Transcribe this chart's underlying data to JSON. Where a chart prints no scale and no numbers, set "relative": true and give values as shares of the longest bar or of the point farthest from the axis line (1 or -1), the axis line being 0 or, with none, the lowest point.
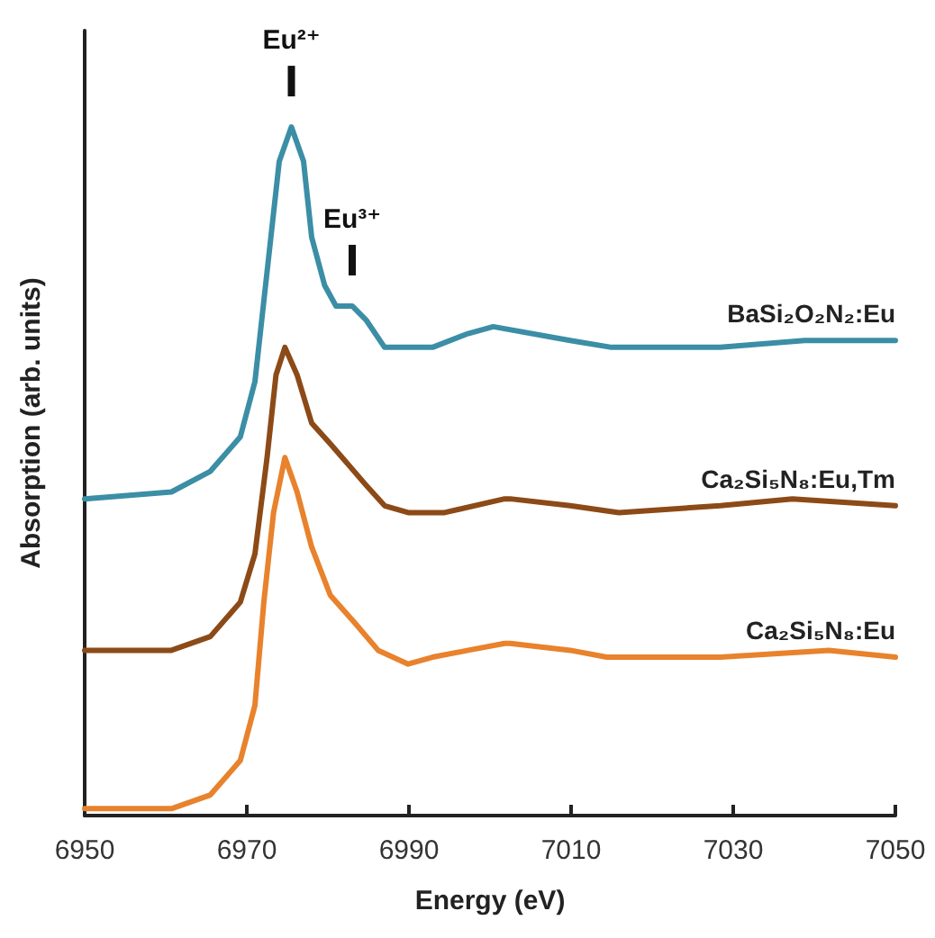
{
  "chart_data": {
    "type": "line",
    "xlabel": "Energy (eV)",
    "ylabel": "Absorption (arb. units)",
    "relative": true,
    "xlim": [
      6950,
      7050
    ],
    "xticks": [
      6950,
      6970,
      6990,
      7010,
      7030,
      7050
    ],
    "grid": false,
    "legend": false,
    "marker": "none",
    "line_style": "solid",
    "annotations": [
      {
        "text": "Eu²⁺",
        "x": 6975.5,
        "y": 1
      },
      {
        "text": "Eu³⁺",
        "x": 6983,
        "y": 0.74
      }
    ],
    "series": [
      {
        "name": "BaSi₂O₂N₂:Eu",
        "color": "#3b8ea5",
        "x": [
          6950,
          6960.7,
          6965.5,
          6969.2,
          6971,
          6972.5,
          6974,
          6975.5,
          6977,
          6978,
          6979.6,
          6981,
          6983,
          6984.7,
          6987,
          6988.8,
          6992.9,
          6997.3,
          7000.4,
          7009.9,
          7015,
          7028.4,
          7038.8,
          7050
        ],
        "values": [
          0.46,
          0.47,
          0.5,
          0.55,
          0.63,
          0.79,
          0.95,
          1,
          0.95,
          0.84,
          0.77,
          0.74,
          0.74,
          0.72,
          0.68,
          0.68,
          0.68,
          0.7,
          0.71,
          0.69,
          0.68,
          0.68,
          0.69,
          0.69
        ]
      },
      {
        "name": "Ca₂Si₅N₈:Eu,Tm",
        "color": "#8c4a17",
        "x": [
          6950,
          6960.7,
          6965.5,
          6969.2,
          6971,
          6972.5,
          6973.6,
          6974.7,
          6976.2,
          6978,
          6980.3,
          6982.5,
          6984.7,
          6987,
          6989.9,
          6994.4,
          7001.8,
          7002.5,
          7009.9,
          7015.9,
          7028.4,
          7037.3,
          7050
        ],
        "values": [
          0.24,
          0.24,
          0.26,
          0.31,
          0.38,
          0.52,
          0.64,
          0.68,
          0.64,
          0.57,
          0.54,
          0.51,
          0.48,
          0.45,
          0.44,
          0.44,
          0.46,
          0.46,
          0.45,
          0.44,
          0.45,
          0.46,
          0.45
        ]
      },
      {
        "name": "Ca₂Si₅N₈:Eu",
        "color": "#e8822c",
        "x": [
          6950,
          6960.7,
          6965.5,
          6969.2,
          6971,
          6972.1,
          6973.3,
          6974.7,
          6976.2,
          6978,
          6980.3,
          6983.3,
          6986.2,
          6989.9,
          6992.9,
          6997.3,
          7001.8,
          7002.5,
          7009.9,
          7014.4,
          7028.4,
          7041.8,
          7050
        ],
        "values": [
          0.01,
          0.01,
          0.03,
          0.08,
          0.16,
          0.31,
          0.44,
          0.52,
          0.47,
          0.39,
          0.32,
          0.28,
          0.24,
          0.22,
          0.23,
          0.24,
          0.25,
          0.25,
          0.24,
          0.23,
          0.23,
          0.24,
          0.23
        ]
      }
    ]
  }
}
